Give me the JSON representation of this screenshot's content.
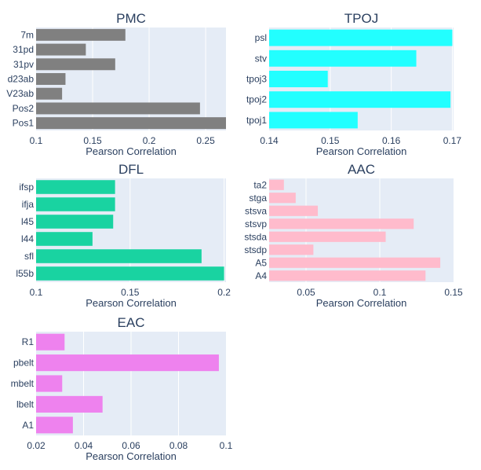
{
  "chart_data": [
    {
      "type": "bar",
      "orientation": "horizontal",
      "title": "PMC",
      "xlabel": "Pearson Correlation",
      "color": "#808080",
      "categories": [
        "Pos1",
        "Pos2",
        "V23ab",
        "d23ab",
        "31pv",
        "31pd",
        "7m"
      ],
      "values": [
        0.268,
        0.245,
        0.123,
        0.126,
        0.17,
        0.144,
        0.179
      ],
      "xlim": [
        0.1,
        0.268
      ],
      "xticks": [
        0.1,
        0.15,
        0.2,
        0.25
      ],
      "xtick_labels": [
        "0.1",
        "0.15",
        "0.2",
        "0.25"
      ]
    },
    {
      "type": "bar",
      "orientation": "horizontal",
      "title": "TPOJ",
      "xlabel": "Pearson Correlation",
      "color": "#22ffff",
      "categories": [
        "tpoj1",
        "tpoj2",
        "tpoj3",
        "stv",
        "psl"
      ],
      "values": [
        0.1545,
        0.1697,
        0.1496,
        0.1641,
        0.17
      ],
      "xlim": [
        0.14,
        0.1702
      ],
      "xticks": [
        0.14,
        0.15,
        0.16,
        0.17
      ],
      "xtick_labels": [
        "0.14",
        "0.15",
        "0.16",
        "0.17"
      ]
    },
    {
      "type": "bar",
      "orientation": "horizontal",
      "title": "DFL",
      "xlabel": "Pearson Correlation",
      "color": "#19d3a1",
      "categories": [
        "l55b",
        "sfl",
        "l44",
        "l45",
        "ifja",
        "ifsp"
      ],
      "values": [
        0.2,
        0.188,
        0.13,
        0.141,
        0.142,
        0.142
      ],
      "xlim": [
        0.1,
        0.201
      ],
      "xticks": [
        0.1,
        0.15,
        0.2
      ],
      "xtick_labels": [
        "0.1",
        "0.15",
        "0.2"
      ]
    },
    {
      "type": "bar",
      "orientation": "horizontal",
      "title": "AAC",
      "xlabel": "Pearson Correlation",
      "color": "#ffbbcc",
      "categories": [
        "A4",
        "A5",
        "stsdp",
        "stsda",
        "stsvp",
        "stsva",
        "stga",
        "ta2"
      ],
      "values": [
        0.131,
        0.141,
        0.055,
        0.104,
        0.123,
        0.058,
        0.043,
        0.035
      ],
      "xlim": [
        0.025,
        0.15
      ],
      "xticks": [
        0.05,
        0.1,
        0.15
      ],
      "xtick_labels": [
        "0.05",
        "0.1",
        "0.15"
      ]
    },
    {
      "type": "bar",
      "orientation": "horizontal",
      "title": "EAC",
      "xlabel": "Pearson Correlation",
      "color": "#ee82ee",
      "categories": [
        "A1",
        "lbelt",
        "mbelt",
        "pbelt",
        "R1"
      ],
      "values": [
        0.0355,
        0.048,
        0.031,
        0.097,
        0.032
      ],
      "xlim": [
        0.02,
        0.1
      ],
      "xticks": [
        0.02,
        0.04,
        0.06,
        0.08,
        0.1
      ],
      "xtick_labels": [
        "0.02",
        "0.04",
        "0.06",
        "0.08",
        "0.1"
      ]
    }
  ]
}
